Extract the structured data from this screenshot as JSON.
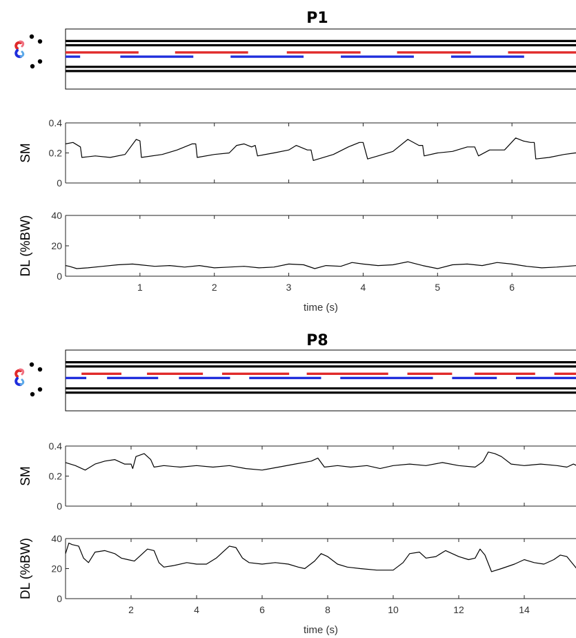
{
  "chart_data": [
    {
      "id": "P1",
      "title": "P1",
      "footfall": {
        "type": "gait-diagram",
        "colors": {
          "left": "#e02a2a",
          "right": "#1f2ddc"
        },
        "red_segments": [
          [
            0.0,
            1.0
          ],
          [
            1.5,
            2.5
          ],
          [
            3.03,
            4.04
          ],
          [
            4.54,
            5.55
          ],
          [
            6.06,
            7.0
          ]
        ],
        "blue_segments": [
          [
            0.0,
            0.2
          ],
          [
            0.75,
            1.75
          ],
          [
            2.26,
            3.26
          ],
          [
            3.77,
            4.77
          ],
          [
            5.28,
            6.28
          ]
        ]
      },
      "sm": {
        "type": "line",
        "ylabel": "SM",
        "ylim": [
          0,
          0.4
        ],
        "yticks": [
          0,
          0.2,
          0.4
        ],
        "x": [
          0.0,
          0.1,
          0.2,
          0.22,
          0.4,
          0.6,
          0.8,
          0.95,
          1.0,
          1.02,
          1.3,
          1.5,
          1.7,
          1.75,
          1.77,
          2.0,
          2.2,
          2.3,
          2.4,
          2.5,
          2.55,
          2.58,
          2.8,
          3.0,
          3.1,
          3.25,
          3.3,
          3.33,
          3.6,
          3.8,
          3.95,
          4.0,
          4.06,
          4.2,
          4.4,
          4.6,
          4.75,
          4.8,
          4.82,
          5.0,
          5.2,
          5.4,
          5.5,
          5.55,
          5.7,
          5.9,
          6.05,
          6.15,
          6.25,
          6.3,
          6.32,
          6.5,
          6.7,
          6.85,
          7.0
        ],
        "y": [
          0.26,
          0.27,
          0.24,
          0.17,
          0.18,
          0.17,
          0.19,
          0.29,
          0.28,
          0.17,
          0.19,
          0.22,
          0.26,
          0.26,
          0.17,
          0.19,
          0.2,
          0.25,
          0.26,
          0.24,
          0.25,
          0.18,
          0.2,
          0.22,
          0.25,
          0.22,
          0.22,
          0.15,
          0.19,
          0.24,
          0.27,
          0.27,
          0.16,
          0.18,
          0.21,
          0.29,
          0.25,
          0.25,
          0.18,
          0.2,
          0.21,
          0.24,
          0.24,
          0.18,
          0.22,
          0.22,
          0.3,
          0.28,
          0.27,
          0.27,
          0.16,
          0.17,
          0.19,
          0.2,
          0.2
        ]
      },
      "dl": {
        "type": "line",
        "ylabel": "DL (%BW)",
        "xlabel": "time (s)",
        "ylim": [
          0,
          40
        ],
        "yticks": [
          0,
          20,
          40
        ],
        "xlim": [
          0,
          6.87
        ],
        "xticks": [
          1,
          2,
          3,
          4,
          5,
          6
        ],
        "x": [
          0.0,
          0.05,
          0.15,
          0.3,
          0.5,
          0.7,
          0.9,
          1.0,
          1.2,
          1.4,
          1.6,
          1.8,
          2.0,
          2.2,
          2.4,
          2.6,
          2.8,
          3.0,
          3.2,
          3.35,
          3.5,
          3.7,
          3.85,
          4.0,
          4.2,
          4.4,
          4.6,
          4.8,
          5.0,
          5.2,
          5.4,
          5.6,
          5.8,
          6.0,
          6.2,
          6.4,
          6.6,
          6.87
        ],
        "y": [
          7,
          6.5,
          5,
          5.5,
          6.5,
          7.5,
          8,
          7.5,
          6.5,
          7,
          6,
          7,
          5.5,
          6,
          6.5,
          5.5,
          6,
          8,
          7.5,
          5,
          7,
          6.5,
          9,
          8,
          7,
          7.5,
          9.5,
          7,
          5,
          7.5,
          8,
          7,
          9,
          8,
          6.5,
          5.5,
          6,
          7
        ]
      }
    },
    {
      "id": "P8",
      "title": "P8",
      "footfall": {
        "type": "gait-diagram",
        "colors": {
          "left": "#e02a2a",
          "right": "#1f2ddc"
        },
        "red_segments": [
          [
            0.5,
            1.75
          ],
          [
            2.55,
            4.3
          ],
          [
            4.9,
            7.0
          ],
          [
            7.55,
            10.1
          ],
          [
            10.7,
            12.1
          ],
          [
            12.8,
            14.7
          ],
          [
            15.3,
            16.0
          ]
        ],
        "blue_segments": [
          [
            0.0,
            0.65
          ],
          [
            1.3,
            2.9
          ],
          [
            3.55,
            5.15
          ],
          [
            5.75,
            8.0
          ],
          [
            8.6,
            11.5
          ],
          [
            12.1,
            13.5
          ],
          [
            14.1,
            16.0
          ]
        ]
      },
      "sm": {
        "type": "line",
        "ylabel": "SM",
        "ylim": [
          0,
          0.4
        ],
        "yticks": [
          0,
          0.2,
          0.4
        ],
        "x": [
          0.0,
          0.3,
          0.6,
          0.9,
          1.2,
          1.5,
          1.8,
          2.0,
          2.05,
          2.15,
          2.4,
          2.6,
          2.7,
          3.0,
          3.5,
          4.0,
          4.5,
          5.0,
          5.5,
          6.0,
          6.5,
          7.0,
          7.5,
          7.7,
          7.9,
          8.3,
          8.7,
          9.2,
          9.6,
          10.0,
          10.5,
          11.0,
          11.5,
          12.0,
          12.5,
          12.7,
          12.75,
          12.9,
          13.1,
          13.3,
          13.6,
          14.0,
          14.5,
          15.0,
          15.3,
          15.5,
          15.8,
          16.0
        ],
        "y": [
          0.29,
          0.27,
          0.24,
          0.28,
          0.3,
          0.31,
          0.28,
          0.28,
          0.25,
          0.33,
          0.35,
          0.31,
          0.26,
          0.27,
          0.26,
          0.27,
          0.26,
          0.27,
          0.25,
          0.24,
          0.26,
          0.28,
          0.3,
          0.32,
          0.26,
          0.27,
          0.26,
          0.27,
          0.25,
          0.27,
          0.28,
          0.27,
          0.29,
          0.27,
          0.26,
          0.29,
          0.3,
          0.36,
          0.35,
          0.33,
          0.28,
          0.27,
          0.28,
          0.27,
          0.26,
          0.28,
          0.27,
          0.33
        ]
      },
      "dl": {
        "type": "line",
        "ylabel": "DL (%BW)",
        "xlabel": "time (s)",
        "ylim": [
          0,
          40
        ],
        "yticks": [
          0,
          20,
          40
        ],
        "xlim": [
          0,
          15.6
        ],
        "xticks": [
          2,
          4,
          6,
          8,
          10,
          12,
          14
        ],
        "x": [
          0.0,
          0.1,
          0.2,
          0.4,
          0.55,
          0.7,
          0.9,
          1.2,
          1.5,
          1.7,
          1.9,
          2.1,
          2.3,
          2.5,
          2.7,
          2.85,
          3.0,
          3.3,
          3.7,
          4.0,
          4.3,
          4.6,
          4.8,
          5.0,
          5.2,
          5.4,
          5.6,
          6.0,
          6.4,
          6.8,
          7.1,
          7.3,
          7.6,
          7.8,
          8.0,
          8.3,
          8.6,
          9.0,
          9.5,
          10.0,
          10.3,
          10.5,
          10.8,
          11.0,
          11.3,
          11.6,
          12.0,
          12.3,
          12.5,
          12.65,
          12.8,
          13.0,
          13.3,
          13.7,
          14.0,
          14.3,
          14.6,
          14.9,
          15.1,
          15.3,
          15.6
        ],
        "y": [
          30,
          37,
          36,
          35,
          27,
          24,
          31,
          32,
          30,
          27,
          26,
          25,
          29,
          33,
          32,
          24,
          21,
          22,
          24,
          23,
          23,
          27,
          31,
          35,
          34,
          27,
          24,
          23,
          24,
          23,
          21,
          20,
          25,
          30,
          28,
          23,
          21,
          20,
          19,
          19,
          24,
          30,
          31,
          27,
          28,
          32,
          28,
          26,
          27,
          33,
          29,
          18,
          20,
          23,
          26,
          24,
          23,
          26,
          29,
          28,
          20
        ]
      }
    }
  ]
}
